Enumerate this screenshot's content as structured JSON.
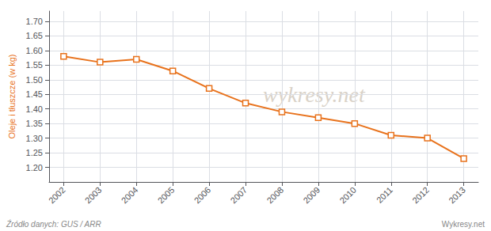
{
  "chart_data": {
    "type": "line",
    "ylabel": "Oleje i tłuszcze (w kg)",
    "x": [
      2002,
      2003,
      2004,
      2005,
      2006,
      2007,
      2008,
      2009,
      2010,
      2011,
      2012,
      2013
    ],
    "values": [
      1.58,
      1.56,
      1.57,
      1.53,
      1.47,
      1.42,
      1.39,
      1.37,
      1.35,
      1.31,
      1.3,
      1.23
    ],
    "color": "#E8721C",
    "marker": "square",
    "xlim": [
      2001.6,
      2013.4
    ],
    "xticks": [
      2002,
      2003,
      2004,
      2005,
      2006,
      2007,
      2008,
      2009,
      2010,
      2011,
      2012,
      2013
    ],
    "ylim": [
      1.15,
      1.735
    ],
    "yticks": [
      {
        "value": 1.2,
        "label": "1.20"
      },
      1.25,
      {
        "value": 1.3,
        "label": "1.30"
      },
      1.35,
      {
        "value": 1.4,
        "label": "1.40"
      },
      1.45,
      {
        "value": 1.5,
        "label": "1.50"
      },
      1.55,
      {
        "value": 1.6,
        "label": "1.60"
      },
      1.65,
      {
        "value": 1.7,
        "label": "1.70"
      }
    ],
    "grid": true,
    "annotations": [
      "wykresy.net",
      "Źródło danych: GUS / ARR",
      "Wykresy.net"
    ]
  }
}
